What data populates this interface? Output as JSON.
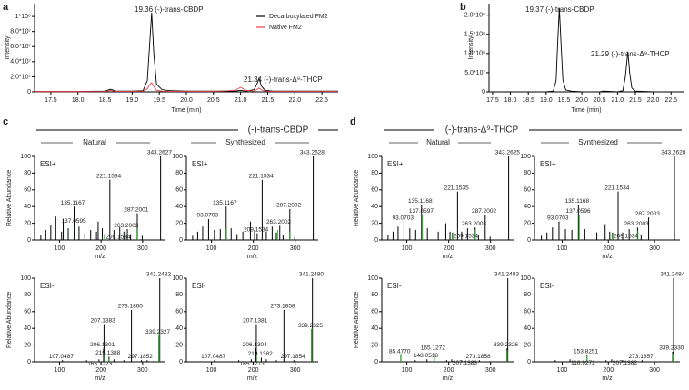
{
  "panel_labels": [
    "a",
    "b",
    "c",
    "d"
  ],
  "sections": [
    {
      "title": "(-)-trans-CBDP",
      "groups": [
        "Natural",
        "Synthesized"
      ]
    },
    {
      "title": "(-)-trans-Δ⁹-THCP",
      "groups": [
        "Natural",
        "Synthesized"
      ]
    }
  ],
  "chart_data": [
    {
      "type": "line",
      "ylabel": "Intensity",
      "xlabel": "Time (min)",
      "legend": "upper right",
      "x": [
        17.2,
        17.5,
        18.0,
        18.5,
        18.6,
        18.7,
        19.0,
        19.2,
        19.28,
        19.32,
        19.36,
        19.4,
        19.45,
        19.55,
        19.7,
        20.0,
        20.5,
        20.9,
        21.0,
        21.1,
        21.25,
        21.3,
        21.34,
        21.38,
        21.45,
        21.6,
        22.0,
        22.5,
        22.8
      ],
      "series": [
        {
          "name": "Decarboxylated FM2",
          "color": "#000000",
          "values": [
            500000,
            500000,
            500000,
            1000000,
            3500000,
            1000000,
            1000000,
            1500000,
            15000000,
            60000000,
            105000000,
            50000000,
            10000000,
            3000000,
            1500000,
            1000000,
            1000000,
            1000000,
            2000000,
            1000000,
            3000000,
            10000000,
            18000000,
            8000000,
            2000000,
            1000000,
            1000000,
            1000000,
            1000000
          ]
        },
        {
          "name": "Native FM2",
          "color": "#e8404a",
          "values": [
            300000,
            300000,
            300000,
            500000,
            2000000,
            500000,
            500000,
            1000000,
            4000000,
            9000000,
            12000000,
            7000000,
            2000000,
            1000000,
            500000,
            500000,
            500000,
            2000000,
            6000000,
            2000000,
            1000000,
            3000000,
            5000000,
            3000000,
            1000000,
            500000,
            500000,
            500000,
            500000
          ]
        }
      ],
      "annotations": [
        "19.36 (-)-trans-CBDP",
        "21.34 (-)-trans-Δ⁹-THCP"
      ],
      "xlim": [
        17.2,
        22.8
      ],
      "xticks": [
        17.5,
        {
          "value": 18,
          "label": "18.0"
        },
        18.5,
        {
          "value": 19,
          "label": "19.0"
        },
        19.5,
        {
          "value": 20,
          "label": "20.0"
        },
        20.5,
        {
          "value": 21,
          "label": "21.0"
        },
        21.5,
        {
          "value": 22,
          "label": "22.0"
        },
        22.5
      ],
      "ylim": [
        0,
        117000000
      ],
      "yticks": [
        0,
        {
          "value": 20000000,
          "label": "2.0*10⁷"
        },
        {
          "value": 40000000,
          "label": "4.0*10⁷"
        },
        {
          "value": 60000000,
          "label": "6.0*10⁷"
        },
        {
          "value": 80000000,
          "label": "8.0*10⁷"
        },
        {
          "value": 100000000,
          "label": "1*10⁸"
        }
      ]
    },
    {
      "type": "line",
      "ylabel": "Intensity",
      "xlabel": "Time (min)",
      "color": "#000000",
      "x": [
        17.4,
        18.0,
        18.5,
        19.0,
        19.2,
        19.28,
        19.32,
        19.37,
        19.42,
        19.47,
        19.55,
        19.7,
        20.0,
        20.5,
        20.6,
        21.0,
        21.15,
        21.22,
        21.29,
        21.34,
        21.4,
        21.5,
        22.0,
        22.85
      ],
      "values": [
        0,
        0,
        0,
        0,
        2000000,
        30000000,
        120000000,
        218000000,
        120000000,
        30000000,
        5000000,
        2000000,
        0,
        0,
        2000000,
        0,
        3000000,
        40000000,
        105000000,
        50000000,
        10000000,
        2000000,
        0,
        0
      ],
      "annotations": [
        "19.37 (-)-trans-CBDP",
        "21.29 (-)-trans-Δ⁹-THCP"
      ],
      "xlim": [
        17.4,
        22.85
      ],
      "xticks": [
        17.5,
        {
          "value": 18,
          "label": "18.0"
        },
        18.5,
        {
          "value": 19,
          "label": "19.0"
        },
        19.5,
        {
          "value": 20,
          "label": "20.0"
        },
        20.5,
        {
          "value": 21,
          "label": "21.0"
        },
        21.5,
        {
          "value": 22,
          "label": "22.0"
        },
        22.5
      ],
      "ylim": [
        0,
        230000000
      ],
      "yticks": [
        0,
        {
          "value": 50000000,
          "label": "5.0*10⁷"
        },
        {
          "value": 100000000,
          "label": "1.0*10⁸"
        },
        {
          "value": 150000000,
          "label": "1.5*10⁸"
        },
        {
          "value": 200000000,
          "label": "2.0*10⁸"
        }
      ]
    },
    {
      "type": "spectrum",
      "mode": "ESI+",
      "ylabel": "Relative Abundance",
      "xlabel": "m/z",
      "xlim": [
        40,
        355
      ],
      "xticks": [
        100,
        200,
        300
      ],
      "ylim": [
        0,
        100
      ],
      "yticks": [
        0,
        20,
        40,
        60,
        80,
        100
      ],
      "series": [
        {
          "color": "#000000",
          "x": [
            343.2627,
            221.1534,
            287.2001,
            135.1167,
            263.2002,
            209.1534,
            55,
            67,
            79,
            91,
            105,
            109,
            121,
            147,
            161,
            175,
            189,
            193,
            203,
            231,
            245,
            255,
            271,
            299
          ],
          "values": [
            100,
            72,
            32,
            40,
            13,
            8,
            6,
            12,
            18,
            28,
            10,
            25,
            14,
            16,
            8,
            12,
            10,
            22,
            14,
            12,
            15,
            10,
            7,
            5
          ],
          "labels": [
            "343.2627",
            "221.1534",
            "287.2001",
            "135.1167",
            "263.2002",
            "209.1534",
            null,
            null,
            null,
            null,
            null,
            null,
            null,
            null,
            null,
            null,
            null,
            null,
            null,
            null,
            null,
            null,
            null,
            null
          ]
        },
        {
          "color": "#33bb33",
          "x": [
            137.0595,
            208,
            258,
            288
          ],
          "values": [
            18,
            6,
            10,
            14
          ],
          "labels": [
            "137.0595",
            null,
            null,
            null
          ]
        }
      ]
    },
    {
      "type": "spectrum",
      "mode": "ESI+",
      "xlabel": "m/z",
      "xlim": [
        40,
        355
      ],
      "xticks": [
        100,
        200,
        300
      ],
      "ylim": [
        0,
        100
      ],
      "yticks": [
        0,
        20,
        40,
        60,
        80,
        100
      ],
      "series": [
        {
          "color": "#000000",
          "x": [
            343.2628,
            221.1534,
            287.2002,
            135.1167,
            93.0703,
            263.2002,
            209.1534,
            55,
            67,
            79,
            107,
            121,
            147,
            161,
            175,
            193,
            203,
            231,
            245,
            255,
            271,
            299
          ],
          "values": [
            100,
            72,
            37,
            40,
            25,
            17,
            8,
            5,
            10,
            16,
            12,
            13,
            14,
            7,
            10,
            22,
            12,
            10,
            16,
            9,
            6,
            4
          ],
          "labels": [
            "343.2628",
            "221.1534",
            "287.2002",
            "135.1167",
            "93.0703",
            "263.2002",
            "209.1534",
            null,
            null,
            null,
            null,
            null,
            null,
            null,
            null,
            null,
            null,
            null,
            null,
            null,
            null,
            null
          ]
        },
        {
          "color": "#33bb33",
          "x": [
            136,
            258,
            288
          ],
          "values": [
            14,
            12,
            10
          ],
          "labels": [
            null,
            null,
            null
          ]
        }
      ]
    },
    {
      "type": "spectrum",
      "mode": "ESI+",
      "ylabel": "Relative Abundance",
      "xlabel": "m/z",
      "xlim": [
        40,
        355
      ],
      "xticks": [
        100,
        200,
        300
      ],
      "ylim": [
        0,
        100
      ],
      "yticks": [
        0,
        20,
        40,
        60,
        80,
        100
      ],
      "series": [
        {
          "color": "#000000",
          "x": [
            343.2625,
            221.1535,
            287.2002,
            135.1168,
            93.0703,
            263.2003,
            209.1534,
            55,
            67,
            79,
            107,
            121,
            149,
            175,
            193,
            203,
            231,
            245,
            271,
            299
          ],
          "values": [
            100,
            58,
            30,
            42,
            22,
            15,
            9,
            6,
            10,
            16,
            14,
            12,
            14,
            10,
            20,
            10,
            10,
            14,
            6,
            4
          ],
          "labels": [
            "343.2625",
            "221.1535",
            "287.2002",
            "135.1168",
            "93.0703",
            "263.2003",
            "209.1534",
            null,
            null,
            null,
            null,
            null,
            null,
            null,
            null,
            null,
            null,
            null,
            null,
            null
          ]
        },
        {
          "color": "#33bb33",
          "x": [
            137.0597,
            208,
            264
          ],
          "values": [
            30,
            8,
            12
          ],
          "labels": [
            "137.0597",
            null,
            null
          ]
        }
      ]
    },
    {
      "type": "spectrum",
      "mode": "ESI+",
      "xlabel": "m/z",
      "xlim": [
        40,
        355
      ],
      "xticks": [
        100,
        200,
        300
      ],
      "ylim": [
        0,
        100
      ],
      "yticks": [
        0,
        20,
        40,
        60,
        80,
        100
      ],
      "series": [
        {
          "color": "#000000",
          "x": [
            343.2628,
            221.1534,
            287.2003,
            135.1168,
            93.0703,
            263.2003,
            209.1534,
            55,
            67,
            79,
            107,
            121,
            149,
            175,
            193,
            203,
            231,
            245,
            271,
            299
          ],
          "values": [
            100,
            58,
            27,
            42,
            22,
            15,
            9,
            5,
            9,
            15,
            13,
            12,
            13,
            9,
            19,
            10,
            9,
            13,
            6,
            4
          ],
          "labels": [
            "343.2628",
            "221.1534",
            "287.2003",
            "135.1168",
            "93.0703",
            "263.2003",
            "209.1534",
            null,
            null,
            null,
            null,
            null,
            null,
            null,
            null,
            null,
            null,
            null,
            null,
            null
          ]
        },
        {
          "color": "#33bb33",
          "x": [
            137.0596,
            208,
            264
          ],
          "values": [
            30,
            8,
            11
          ],
          "labels": [
            "137.0596",
            null,
            null
          ]
        }
      ]
    },
    {
      "type": "spectrum",
      "mode": "ESI-",
      "ylabel": "Relative Abundance",
      "xlabel": "m/z",
      "xlim": [
        40,
        355
      ],
      "xticks": [
        100,
        200,
        300
      ],
      "ylim": [
        0,
        100
      ],
      "yticks": [
        0,
        20,
        40,
        60,
        80,
        100
      ],
      "series": [
        {
          "color": "#000000",
          "x": [
            341.2482,
            273.186,
            339.2327,
            207.1383,
            206.1301,
            219.1388,
            297.1852,
            165.1273,
            107.0487,
            195,
            231,
            255,
            311
          ],
          "values": [
            100,
            62,
            31,
            45,
            16,
            6,
            2,
            2,
            2,
            3,
            3,
            2,
            2
          ],
          "labels": [
            "341.2482",
            "273.1860",
            "339.2327",
            "207.1383",
            "206.1301",
            "219.1388",
            "297.1852",
            "165.1273",
            "107.0487",
            null,
            null,
            null,
            null
          ]
        },
        {
          "color": "#33bb33",
          "x": [
            340,
            208,
            220
          ],
          "values": [
            35,
            10,
            4
          ],
          "labels": [
            null,
            null,
            null
          ]
        }
      ]
    },
    {
      "type": "spectrum",
      "mode": "ESI-",
      "xlabel": "m/z",
      "xlim": [
        40,
        355
      ],
      "xticks": [
        100,
        200,
        300
      ],
      "ylim": [
        0,
        100
      ],
      "yticks": [
        0,
        20,
        40,
        60,
        80,
        100
      ],
      "series": [
        {
          "color": "#000000",
          "x": [
            341.248,
            273.1858,
            339.2325,
            207.1381,
            206.1304,
            219.1382,
            297.1854,
            165.1273,
            107.0487,
            195,
            231,
            255
          ],
          "values": [
            100,
            62,
            39,
            45,
            16,
            5,
            2,
            2,
            2,
            3,
            3,
            2
          ],
          "labels": [
            "341.2480",
            "273.1858",
            "339.2325",
            "207.1381",
            "206.1304",
            "219.1382",
            "297.1854",
            "165.1273",
            "107.0487",
            null,
            null,
            null
          ]
        },
        {
          "color": "#33bb33",
          "x": [
            340,
            208
          ],
          "values": [
            40,
            10
          ],
          "labels": [
            null,
            null
          ]
        }
      ]
    },
    {
      "type": "spectrum",
      "mode": "ESI-",
      "ylabel": "Relative Abundance",
      "xlabel": "m/z",
      "xlim": [
        40,
        355
      ],
      "xticks": [
        100,
        200,
        300
      ],
      "ylim": [
        0,
        100
      ],
      "yticks": [
        0,
        20,
        40,
        60,
        80,
        100
      ],
      "series": [
        {
          "color": "#000000",
          "x": [
            341.2483,
            339.2326,
            165.1272,
            85.477,
            148.0518,
            207.1383,
            273.1858,
            120,
            195,
            231
          ],
          "values": [
            100,
            16,
            12,
            8,
            3,
            3,
            2,
            2,
            2,
            2
          ],
          "labels": [
            "341.2483",
            "339.2326",
            "165.1272",
            "85.4770",
            "148.0518",
            "207.1383",
            "273.1858",
            null,
            null,
            null
          ]
        },
        {
          "color": "#33bb33",
          "x": [
            86,
            340,
            166
          ],
          "values": [
            10,
            14,
            6
          ],
          "labels": [
            null,
            null,
            null
          ]
        }
      ]
    },
    {
      "type": "spectrum",
      "mode": "ESI-",
      "xlabel": "m/z",
      "xlim": [
        40,
        355
      ],
      "xticks": [
        100,
        200,
        300
      ],
      "ylim": [
        0,
        100
      ],
      "yticks": [
        0,
        20,
        40,
        60,
        80,
        100
      ],
      "series": [
        {
          "color": "#000000",
          "x": [
            341.2484,
            339.233,
            153.8251,
            116.9272,
            207.1382,
            273.1857,
            85,
            195,
            231
          ],
          "values": [
            100,
            12,
            8,
            3,
            3,
            2,
            2,
            2,
            2
          ],
          "labels": [
            "341.2484",
            "339.2330",
            "153.8251",
            "116.9272",
            "207.1382",
            "273.1857",
            null,
            null,
            null
          ]
        },
        {
          "color": "#33bb33",
          "x": [
            154,
            340
          ],
          "values": [
            7,
            10
          ],
          "labels": [
            null,
            null
          ]
        }
      ]
    }
  ]
}
